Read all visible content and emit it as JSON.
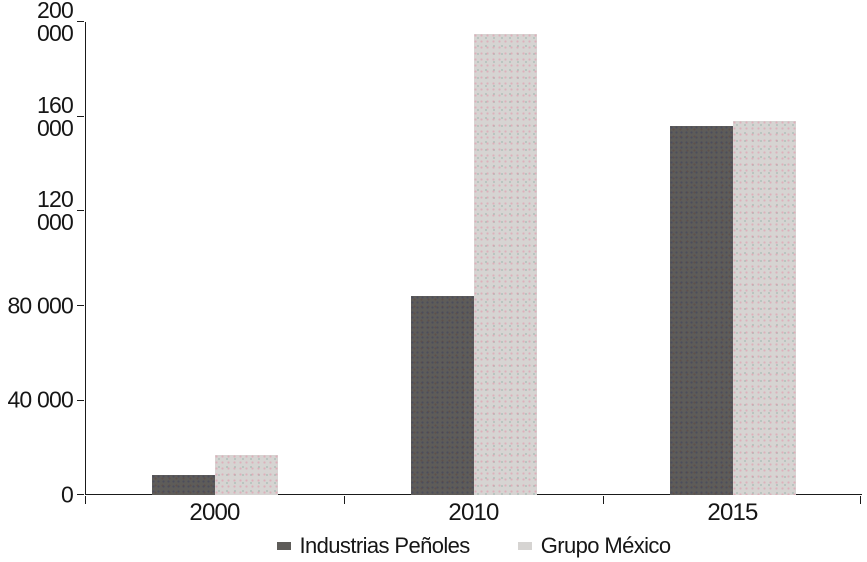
{
  "chart_data": {
    "type": "bar",
    "categories": [
      "2000",
      "2010",
      "2015"
    ],
    "series": [
      {
        "name": "Industrias Peñoles",
        "color": "#5e5c59",
        "values": [
          8500,
          84000,
          156000
        ]
      },
      {
        "name": "Grupo México",
        "color": "#d6d4d2",
        "values": [
          17000,
          195000,
          158000
        ]
      }
    ],
    "title": "",
    "xlabel": "",
    "ylabel": "",
    "ylim": [
      0,
      200000
    ],
    "yticks": [
      0,
      40000,
      80000,
      120000,
      160000,
      200000
    ],
    "ytick_labels": [
      "0",
      "40 000",
      "80 000",
      "120 000",
      "160 000",
      "200 000"
    ],
    "grid": false,
    "legend_position": "bottom",
    "axis_color": "#1a1a1a",
    "background_color": "#ffffff"
  }
}
